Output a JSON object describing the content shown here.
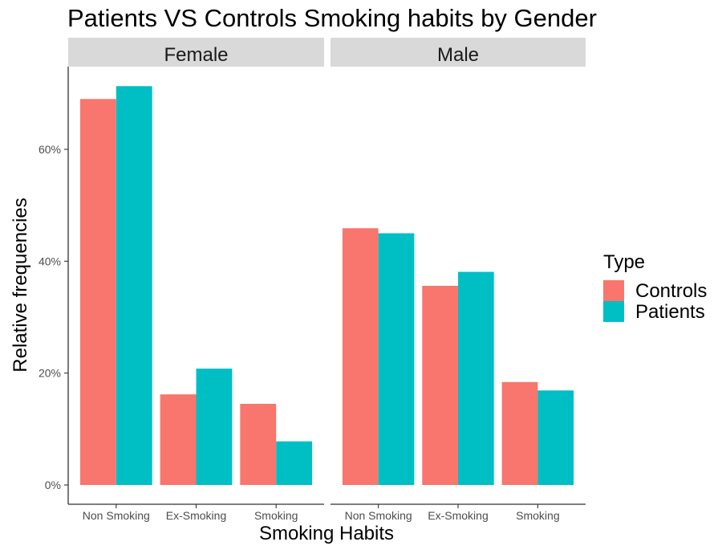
{
  "chart_data": {
    "type": "bar",
    "title": "Patients VS Controls Smoking habits by Gender",
    "xlabel": "Smoking Habits",
    "ylabel": "Relative frequencies",
    "ylim": [
      0,
      0.72
    ],
    "yticks": [
      {
        "value": 0,
        "label": "0%"
      },
      {
        "value": 0.2,
        "label": "20%"
      },
      {
        "value": 0.4,
        "label": "40%"
      },
      {
        "value": 0.6,
        "label": "60%"
      }
    ],
    "grid": false,
    "legend": {
      "title": "Type",
      "position": "right"
    },
    "categories": [
      "Non Smoking",
      "Ex-Smoking",
      "Smoking"
    ],
    "facets": [
      {
        "name": "Female",
        "series": [
          {
            "name": "Controls",
            "values": [
              0.69,
              0.162,
              0.145
            ]
          },
          {
            "name": "Patients",
            "values": [
              0.713,
              0.208,
              0.078
            ]
          }
        ]
      },
      {
        "name": "Male",
        "series": [
          {
            "name": "Controls",
            "values": [
              0.459,
              0.356,
              0.184
            ]
          },
          {
            "name": "Patients",
            "values": [
              0.45,
              0.381,
              0.169
            ]
          }
        ]
      }
    ],
    "colors": {
      "Controls": "#F8766D",
      "Patients": "#00BFC4"
    }
  }
}
